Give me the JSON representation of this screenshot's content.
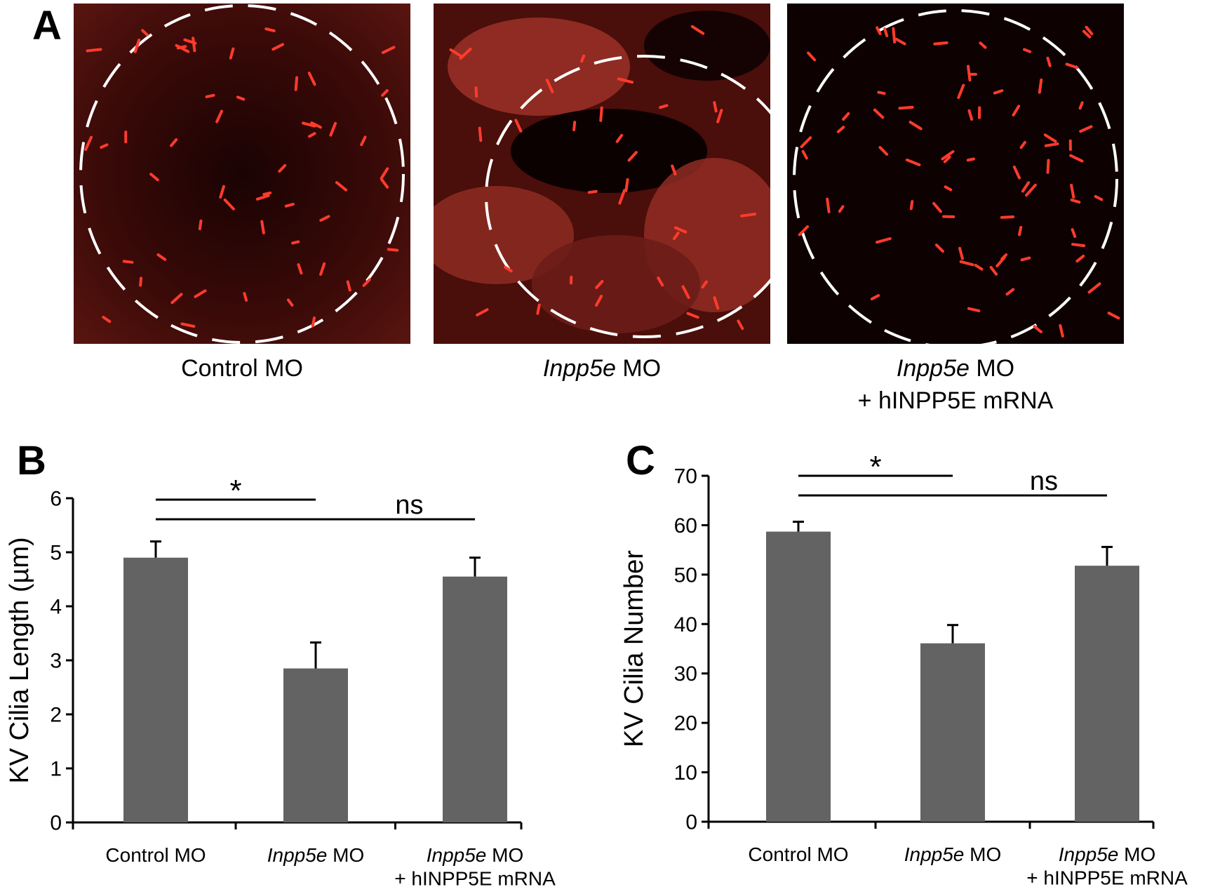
{
  "panelA": {
    "label": "A",
    "images": [
      {
        "line1_italic": "",
        "line1_rest": "Control MO",
        "line2": ""
      },
      {
        "line1_italic": "Inpp5e",
        "line1_rest": " MO",
        "line2": ""
      },
      {
        "line1_italic": "Inpp5e",
        "line1_rest": " MO",
        "line2": "+ hINPP5E  mRNA"
      }
    ]
  },
  "panelB": {
    "label": "B"
  },
  "panelC": {
    "label": "C"
  },
  "chart_data": [
    {
      "panel": "B",
      "type": "bar",
      "categories": [
        {
          "italic": "",
          "rest": "Control MO",
          "line2": ""
        },
        {
          "italic": "Inpp5e",
          "rest": " MO",
          "line2": ""
        },
        {
          "italic": "Inpp5e",
          "rest": " MO",
          "line2": "+ hINPP5E  mRNA"
        }
      ],
      "values": [
        4.9,
        2.85,
        4.55
      ],
      "errors": [
        0.3,
        0.48,
        0.35
      ],
      "ylabel": "KV Cilia Length (µm)",
      "ylim": [
        0,
        6
      ],
      "yticks": [
        0,
        1,
        2,
        3,
        4,
        5,
        6
      ],
      "bar_color": "#636363",
      "significance": [
        {
          "from": 0,
          "to": 1,
          "label": "*"
        },
        {
          "from": 0,
          "to": 2,
          "label": "ns"
        }
      ]
    },
    {
      "panel": "C",
      "type": "bar",
      "categories": [
        {
          "italic": "",
          "rest": "Control MO",
          "line2": ""
        },
        {
          "italic": "Inpp5e",
          "rest": " MO",
          "line2": ""
        },
        {
          "italic": "Inpp5e",
          "rest": " MO",
          "line2": "+ hINPP5E  mRNA"
        }
      ],
      "values": [
        58.7,
        36.1,
        51.8
      ],
      "errors": [
        2.0,
        3.7,
        3.8
      ],
      "ylabel": "KV Cilia Number",
      "ylim": [
        0,
        70
      ],
      "yticks": [
        0,
        10,
        20,
        30,
        40,
        50,
        60,
        70
      ],
      "bar_color": "#636363",
      "significance": [
        {
          "from": 0,
          "to": 1,
          "label": "*"
        },
        {
          "from": 0,
          "to": 2,
          "label": "ns"
        }
      ]
    }
  ]
}
